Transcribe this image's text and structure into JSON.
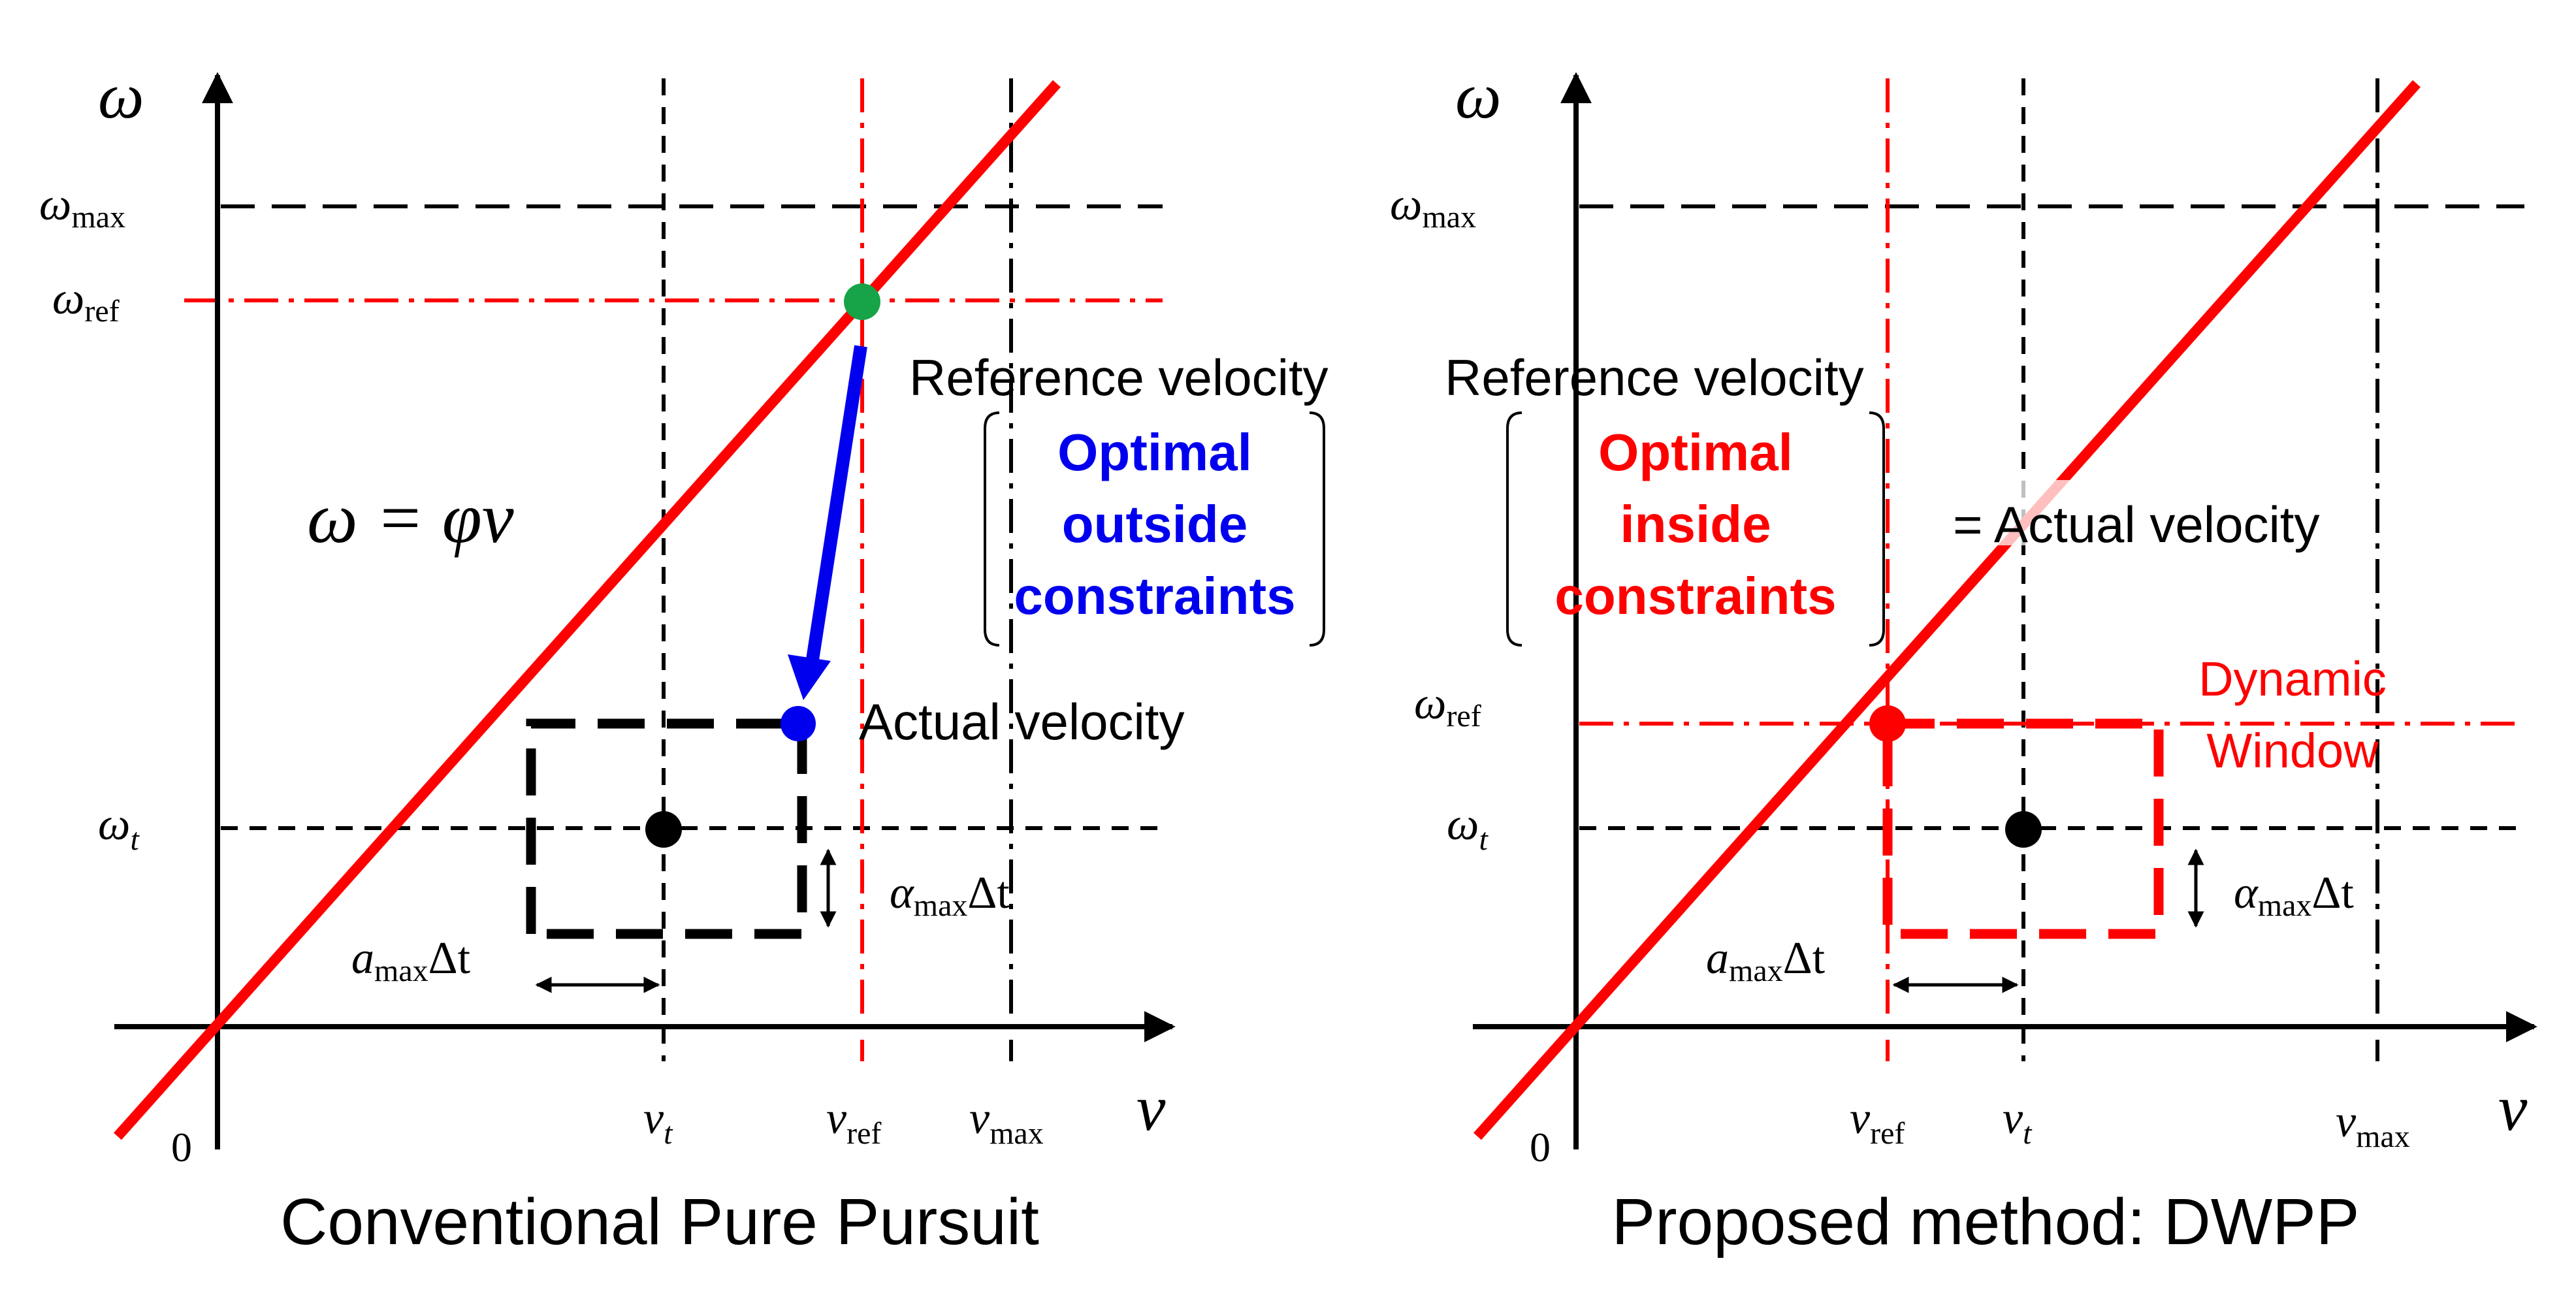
{
  "colors": {
    "line": "#ff0000",
    "black": "#000000",
    "blue": "#0000ee",
    "green": "#17a347",
    "red_text": "#ff0000"
  },
  "left": {
    "caption": "Conventional Pure Pursuit",
    "y_axis_label": "ω",
    "x_axis_label": "v",
    "origin_label": "0",
    "w_max": {
      "base": "ω",
      "sub": "max"
    },
    "w_ref": {
      "base": "ω",
      "sub": "ref"
    },
    "w_t": {
      "base": "ω",
      "sub": "t"
    },
    "v_t": {
      "base": "v",
      "sub": "t"
    },
    "v_ref": {
      "base": "v",
      "sub": "ref"
    },
    "v_max": {
      "base": "v",
      "sub": "max"
    },
    "equation": "ω = φv",
    "ref_label": "Reference velocity",
    "optimal_lines": [
      "Optimal",
      "outside",
      "constraints"
    ],
    "actual_label": "Actual velocity",
    "a_dt_h": {
      "base": "a",
      "sub": "max",
      "tail": "Δt"
    },
    "alpha_dt": {
      "base": "α",
      "sub": "max",
      "tail": "Δt"
    }
  },
  "right": {
    "caption": "Proposed method: DWPP",
    "y_axis_label": "ω",
    "x_axis_label": "v",
    "origin_label": "0",
    "w_max": {
      "base": "ω",
      "sub": "max"
    },
    "w_ref": {
      "base": "ω",
      "sub": "ref"
    },
    "w_t": {
      "base": "ω",
      "sub": "t"
    },
    "v_ref": {
      "base": "v",
      "sub": "ref"
    },
    "v_t": {
      "base": "v",
      "sub": "t"
    },
    "v_max": {
      "base": "v",
      "sub": "max"
    },
    "ref_label": "Reference velocity",
    "optimal_lines": [
      "Optimal",
      "inside",
      "constraints"
    ],
    "equals_actual": "= Actual velocity",
    "dw_lines": [
      "Dynamic",
      "Window"
    ],
    "a_dt_h": {
      "base": "a",
      "sub": "max",
      "tail": "Δt"
    },
    "alpha_dt": {
      "base": "α",
      "sub": "max",
      "tail": "Δt"
    }
  }
}
